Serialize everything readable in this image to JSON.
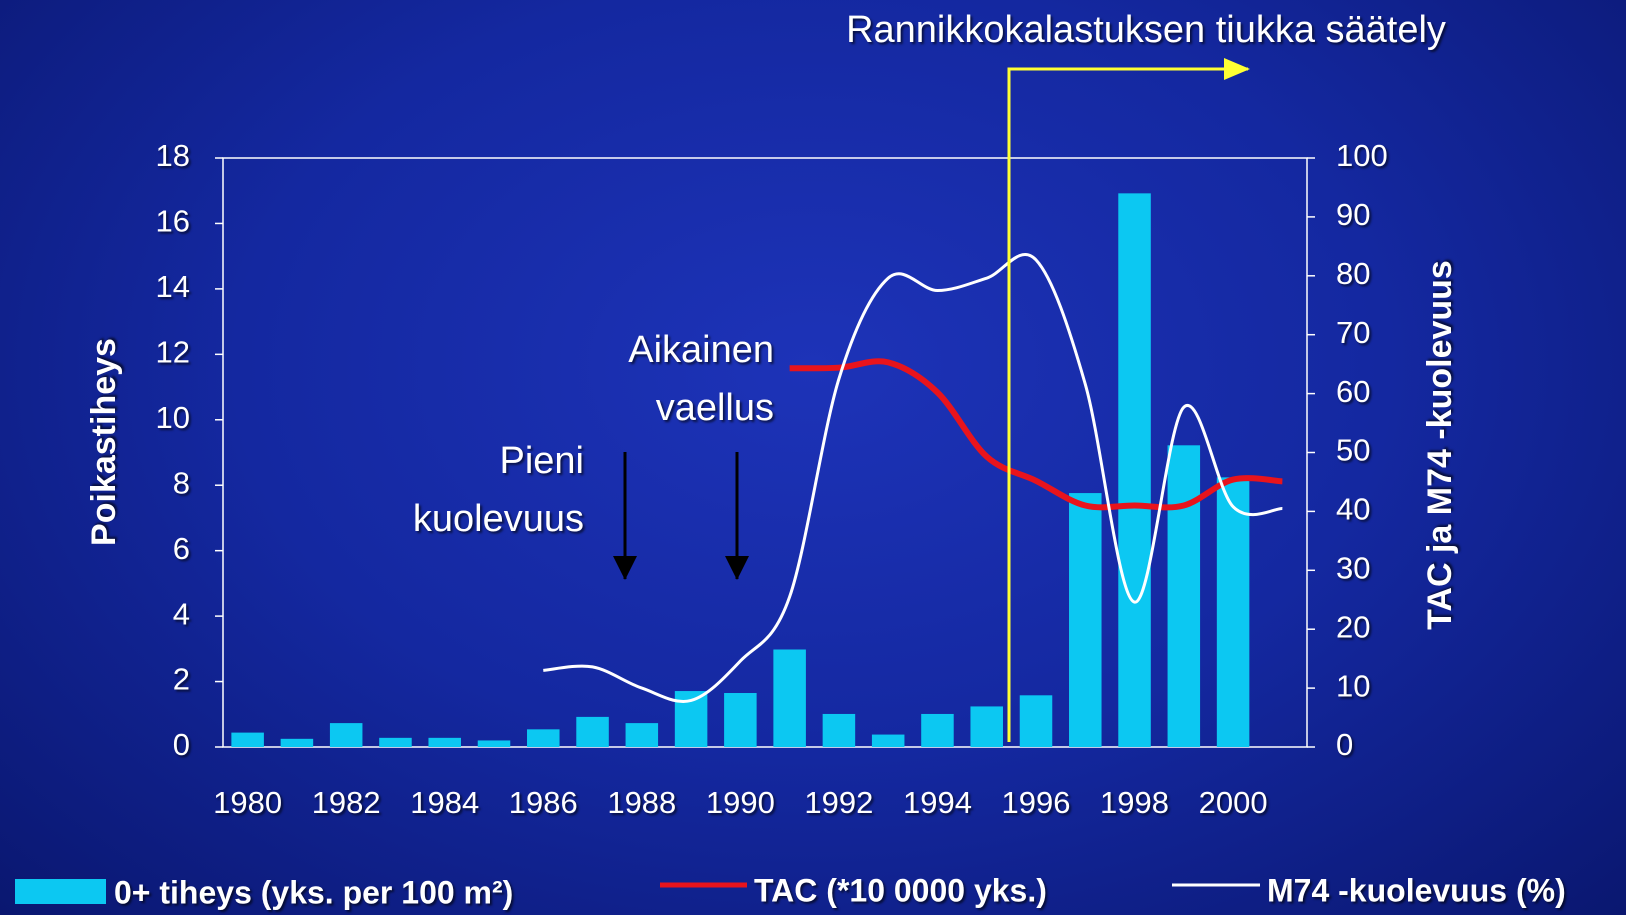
{
  "chart_data": {
    "type": "bar_line",
    "categories": [
      "1980",
      null,
      "1982",
      null,
      "1984",
      null,
      "1986",
      null,
      "1988",
      null,
      "1990",
      null,
      "1992",
      null,
      "1994",
      null,
      "1996",
      null,
      "1998",
      null,
      "2000",
      null
    ],
    "ylabel": "Poikastiheys",
    "y2label": "TAC ja M74 -kuolevuus",
    "ylim": [
      0,
      18
    ],
    "yticks": [
      0,
      2,
      4,
      6,
      8,
      10,
      12,
      14,
      16,
      18
    ],
    "y2lim": [
      0,
      100
    ],
    "y2ticks": [
      0,
      10,
      20,
      30,
      40,
      50,
      60,
      70,
      80,
      90,
      100
    ],
    "series": [
      {
        "name": "0+ tiheys (yks. per 100 m²)",
        "type": "bar",
        "color": "#0cc8f2",
        "values": [
          0.44,
          0.25,
          0.73,
          0.28,
          0.28,
          0.2,
          0.54,
          0.92,
          0.73,
          1.71,
          1.65,
          2.98,
          1.01,
          0.38,
          1.01,
          1.24,
          1.58,
          7.76,
          16.92,
          9.22,
          8.24,
          null
        ]
      },
      {
        "name": "TAC (*10 0000 yks.)",
        "type": "line",
        "axis": "y2",
        "color": "#e8141c",
        "values": [
          null,
          null,
          null,
          null,
          null,
          null,
          null,
          null,
          null,
          null,
          null,
          64.3,
          64.4,
          65.3,
          60.2,
          49.3,
          45.2,
          41,
          41,
          41,
          45.4,
          45.1
        ]
      },
      {
        "name": "M74 -kuolevuus (%)",
        "type": "line",
        "axis": "y2",
        "color": "#ffffff",
        "values": [
          null,
          null,
          null,
          null,
          null,
          null,
          13,
          13.6,
          10,
          7.9,
          14.6,
          25.5,
          62.5,
          79.6,
          77.5,
          79.6,
          82.7,
          61.6,
          24.6,
          57.7,
          40.8,
          40.5
        ]
      }
    ],
    "annotations": [
      {
        "text": [
          "Rannikkokalastuksen tiukka säätely"
        ]
      },
      {
        "text": [
          "Aikainen",
          "vaellus"
        ]
      },
      {
        "text": [
          "Pieni",
          "kuolevuus"
        ]
      }
    ]
  }
}
